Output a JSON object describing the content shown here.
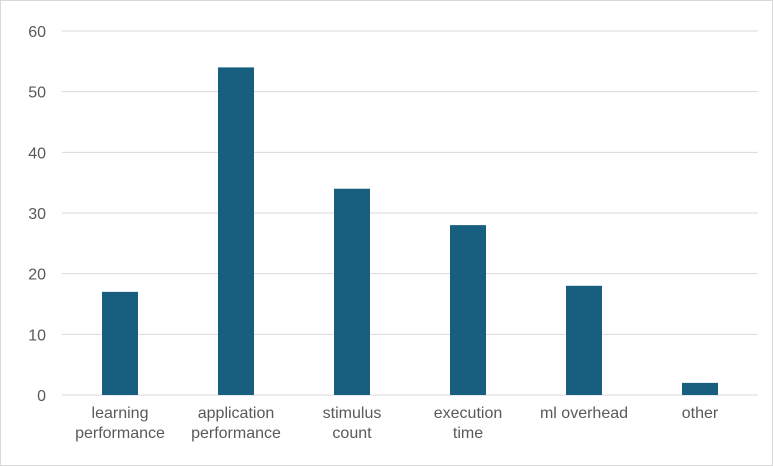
{
  "chart_data": {
    "type": "bar",
    "categories": [
      [
        "learning",
        "performance"
      ],
      [
        "application",
        "performance"
      ],
      [
        "stimulus",
        "count"
      ],
      [
        "execution",
        "time"
      ],
      [
        "ml overhead"
      ],
      [
        "other"
      ]
    ],
    "values": [
      17,
      54,
      34,
      28,
      18,
      2
    ],
    "ylim": [
      0,
      60
    ],
    "yticks": [
      0,
      10,
      20,
      30,
      40,
      50,
      60
    ],
    "grid": true,
    "legend": "none",
    "colors": {
      "bar": "#175e7f",
      "grid": "#d9d9d9",
      "axis": "#d9d9d9",
      "text": "#595959"
    }
  }
}
